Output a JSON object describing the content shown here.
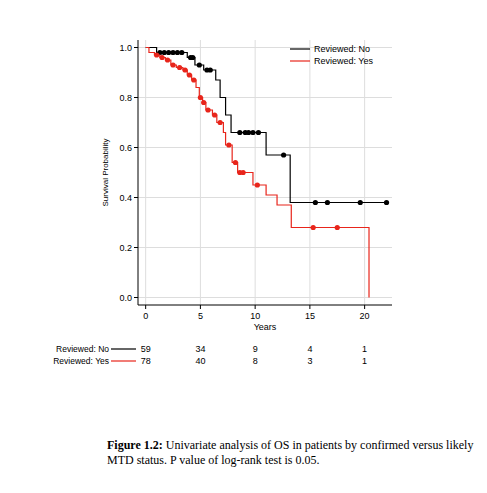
{
  "chart_data": {
    "type": "line",
    "line_style": "step",
    "marker": "circle",
    "x_label": "Years",
    "y_label": "Survival Probability",
    "xlim": [
      -0.7,
      22.5
    ],
    "ylim": [
      -0.03,
      1.03
    ],
    "xticks": [
      0,
      5,
      10,
      15,
      20
    ],
    "yticks": [
      {
        "value": 0,
        "label": "0.0"
      },
      0.2,
      0.4,
      0.6,
      0.8,
      {
        "value": 1,
        "label": "1.0"
      }
    ],
    "grid": true,
    "legend": "top-right",
    "series": [
      {
        "name": "Reviewed: No",
        "color": "#000000",
        "x": [
          0,
          1.0,
          3.8,
          4.5,
          5.3,
          6.4,
          6.8,
          7.3,
          7.8,
          11.0,
          13.2,
          22.0
        ],
        "values": [
          1.0,
          0.98,
          0.96,
          0.93,
          0.91,
          0.87,
          0.8,
          0.73,
          0.66,
          0.57,
          0.38,
          0.38
        ],
        "censor_x": [
          1.3,
          1.7,
          2.1,
          2.5,
          2.9,
          3.3,
          4.1,
          4.3,
          4.9,
          5.6,
          5.9,
          8.6,
          9.1,
          9.4,
          9.8,
          10.3,
          12.6,
          15.5,
          16.6,
          19.6,
          22.0
        ],
        "censor_values": [
          0.98,
          0.98,
          0.98,
          0.98,
          0.98,
          0.98,
          0.96,
          0.96,
          0.93,
          0.91,
          0.91,
          0.66,
          0.66,
          0.66,
          0.66,
          0.66,
          0.57,
          0.38,
          0.38,
          0.38,
          0.38
        ]
      },
      {
        "name": "Reviewed: Yes",
        "color": "#e8251b",
        "x": [
          0,
          0.3,
          0.8,
          1.3,
          1.8,
          2.3,
          2.8,
          3.4,
          3.8,
          4.2,
          4.6,
          4.9,
          5.2,
          5.5,
          6.1,
          6.5,
          7.1,
          7.3,
          7.9,
          8.4,
          9.8,
          11.0,
          12.0,
          13.3,
          20.4
        ],
        "values": [
          1.0,
          0.98,
          0.97,
          0.96,
          0.95,
          0.93,
          0.92,
          0.91,
          0.89,
          0.87,
          0.84,
          0.8,
          0.78,
          0.75,
          0.73,
          0.7,
          0.66,
          0.61,
          0.54,
          0.5,
          0.45,
          0.41,
          0.37,
          0.28,
          0.0
        ],
        "censor_x": [
          1.0,
          1.5,
          2.0,
          2.5,
          3.1,
          3.6,
          4.0,
          4.4,
          5.0,
          5.3,
          5.7,
          6.3,
          6.8,
          7.6,
          8.2,
          8.6,
          8.9,
          10.2,
          15.3,
          17.5
        ],
        "censor_values": [
          0.97,
          0.96,
          0.95,
          0.93,
          0.92,
          0.91,
          0.89,
          0.87,
          0.8,
          0.78,
          0.75,
          0.73,
          0.7,
          0.61,
          0.54,
          0.5,
          0.5,
          0.45,
          0.28,
          0.28
        ]
      }
    ],
    "risk_table": {
      "times": [
        0,
        5,
        10,
        15,
        20
      ],
      "counts": [
        [
          59,
          34,
          9,
          4,
          1
        ],
        [
          78,
          40,
          8,
          3,
          1
        ]
      ]
    }
  },
  "caption": {
    "label": "Figure 1.2:",
    "text": "Univariate analysis of OS in patients by confirmed versus likely MTD status. P value of log-rank test is 0.05."
  }
}
